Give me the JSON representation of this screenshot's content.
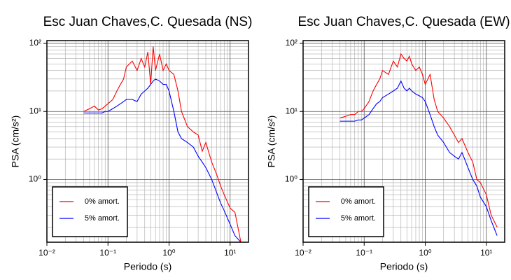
{
  "chart_data": [
    {
      "type": "line",
      "title": "Esc Juan Chaves,C. Quesada (NS)",
      "x_label": "Periodo (s)",
      "y_label": "PSA (cm/s²)",
      "log_x": true,
      "log_y": true,
      "grid": true,
      "legend": "lower left",
      "xlim": [
        0.01,
        20
      ],
      "ylim": [
        0.12,
        110
      ],
      "xticks": [
        {
          "value": 0.01,
          "label": "10⁻²"
        },
        {
          "value": 0.1,
          "label": "10⁻¹"
        },
        {
          "value": 1,
          "label": "10⁰"
        },
        {
          "value": 10,
          "label": "10¹"
        }
      ],
      "yticks": [
        {
          "value": 1,
          "label": "10⁰"
        },
        {
          "value": 10,
          "label": "10¹"
        },
        {
          "value": 100,
          "label": "10²"
        }
      ],
      "x": [
        0.04,
        0.05,
        0.06,
        0.07,
        0.08,
        0.09,
        0.1,
        0.12,
        0.14,
        0.16,
        0.18,
        0.2,
        0.25,
        0.3,
        0.35,
        0.4,
        0.45,
        0.5,
        0.55,
        0.6,
        0.7,
        0.8,
        0.9,
        1.0,
        1.2,
        1.4,
        1.6,
        2.0,
        2.5,
        3,
        3.5,
        4,
        5,
        6,
        7,
        8,
        10,
        12,
        15
      ],
      "series": [
        {
          "name": "0% amort.",
          "color": "#ff0000",
          "values": [
            10,
            11,
            12,
            10.5,
            11,
            12,
            13,
            15,
            20,
            25,
            30,
            45,
            55,
            40,
            60,
            45,
            75,
            25,
            90,
            40,
            70,
            40,
            50,
            40,
            35,
            20,
            10,
            6,
            5,
            4.5,
            2.6,
            3.5,
            1.8,
            1.2,
            0.8,
            0.6,
            0.38,
            0.33,
            0.12
          ]
        },
        {
          "name": "5% amort.",
          "color": "#0000ff",
          "values": [
            9.5,
            9.5,
            9.5,
            9.5,
            9.5,
            10,
            10,
            11,
            12,
            13,
            14,
            15,
            15,
            14,
            18,
            20,
            22,
            25,
            28,
            30,
            28,
            25,
            25,
            20,
            10,
            5,
            4,
            3.5,
            3,
            2.2,
            1.8,
            1.5,
            1.0,
            0.65,
            0.45,
            0.35,
            0.22,
            0.15,
            0.12
          ]
        }
      ]
    },
    {
      "type": "line",
      "title": "Esc Juan Chaves,C. Quesada (EW)",
      "x_label": "Periodo (s)",
      "y_label": "PSA (cm/s²)",
      "log_x": true,
      "log_y": true,
      "grid": true,
      "legend": "lower left",
      "xlim": [
        0.01,
        20
      ],
      "ylim": [
        0.12,
        110
      ],
      "xticks": [
        {
          "value": 0.01,
          "label": "10⁻²"
        },
        {
          "value": 0.1,
          "label": "10⁻¹"
        },
        {
          "value": 1,
          "label": "10⁰"
        },
        {
          "value": 10,
          "label": "10¹"
        }
      ],
      "yticks": [
        {
          "value": 1,
          "label": "10⁰"
        },
        {
          "value": 10,
          "label": "10¹"
        },
        {
          "value": 100,
          "label": "10²"
        }
      ],
      "x": [
        0.04,
        0.05,
        0.06,
        0.07,
        0.08,
        0.09,
        0.1,
        0.12,
        0.14,
        0.16,
        0.18,
        0.2,
        0.25,
        0.3,
        0.35,
        0.4,
        0.45,
        0.5,
        0.55,
        0.6,
        0.7,
        0.8,
        0.9,
        1.0,
        1.2,
        1.4,
        1.6,
        2.0,
        2.5,
        3,
        3.5,
        4,
        5,
        6,
        7,
        8,
        10,
        12,
        15
      ],
      "series": [
        {
          "name": "0% amort.",
          "color": "#ff0000",
          "values": [
            8,
            8.5,
            9,
            9,
            10,
            10,
            11,
            14,
            20,
            25,
            30,
            40,
            35,
            55,
            45,
            70,
            60,
            55,
            65,
            50,
            40,
            45,
            35,
            25,
            35,
            15,
            10,
            8,
            6,
            4.5,
            3.5,
            4,
            2.5,
            1.8,
            1.0,
            0.9,
            0.6,
            0.3,
            0.2
          ]
        },
        {
          "name": "5% amort.",
          "color": "#0000ff",
          "values": [
            7.2,
            7.2,
            7.2,
            7.2,
            7.5,
            7.5,
            8,
            9,
            11,
            13,
            14,
            16,
            18,
            20,
            22,
            28,
            22,
            20,
            22,
            20,
            18,
            17,
            16,
            14,
            9,
            6,
            4.5,
            3.5,
            2.5,
            2.2,
            2.0,
            2.5,
            1.5,
            1.0,
            0.8,
            0.55,
            0.4,
            0.25,
            0.15
          ]
        }
      ]
    }
  ]
}
